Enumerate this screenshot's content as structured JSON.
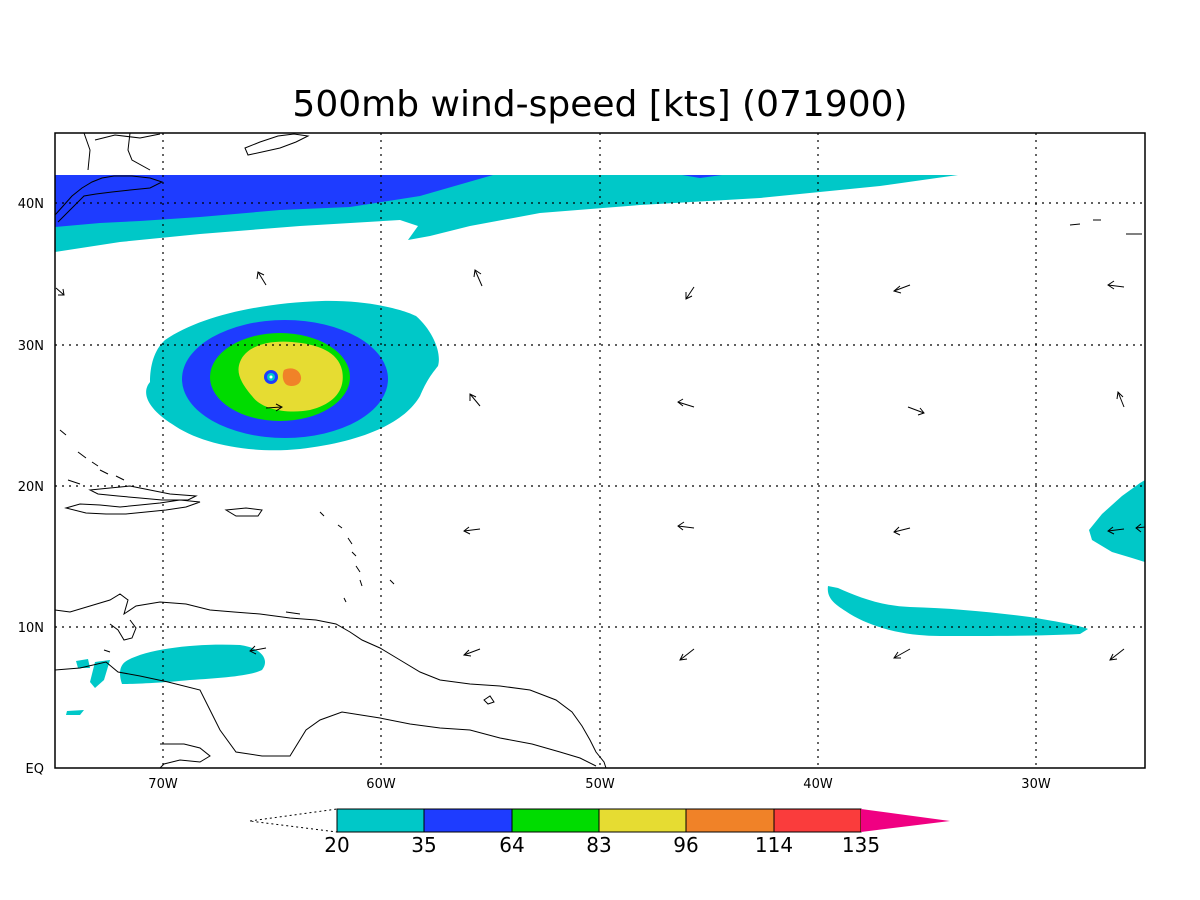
{
  "title": "500mb wind-speed [kts] (071900)",
  "colors": {
    "c20": "#00c8c8",
    "c35": "#1e3cff",
    "c64": "#00dc00",
    "c83": "#e6dc32",
    "c96": "#f08228",
    "c114": "#fa3c3c",
    "c135": "#f00082"
  },
  "chart_data": {
    "type": "heatmap",
    "x_axis": {
      "ticks": [
        "70W",
        "60W",
        "50W",
        "40W",
        "30W"
      ],
      "range": [
        "75W",
        "25W"
      ]
    },
    "y_axis": {
      "ticks": [
        "EQ",
        "10N",
        "20N",
        "30N",
        "40N"
      ],
      "range": [
        "0",
        "45N"
      ]
    },
    "grid": true,
    "colorbar": {
      "levels": [
        "20",
        "35",
        "64",
        "83",
        "96",
        "114",
        "135"
      ]
    }
  }
}
